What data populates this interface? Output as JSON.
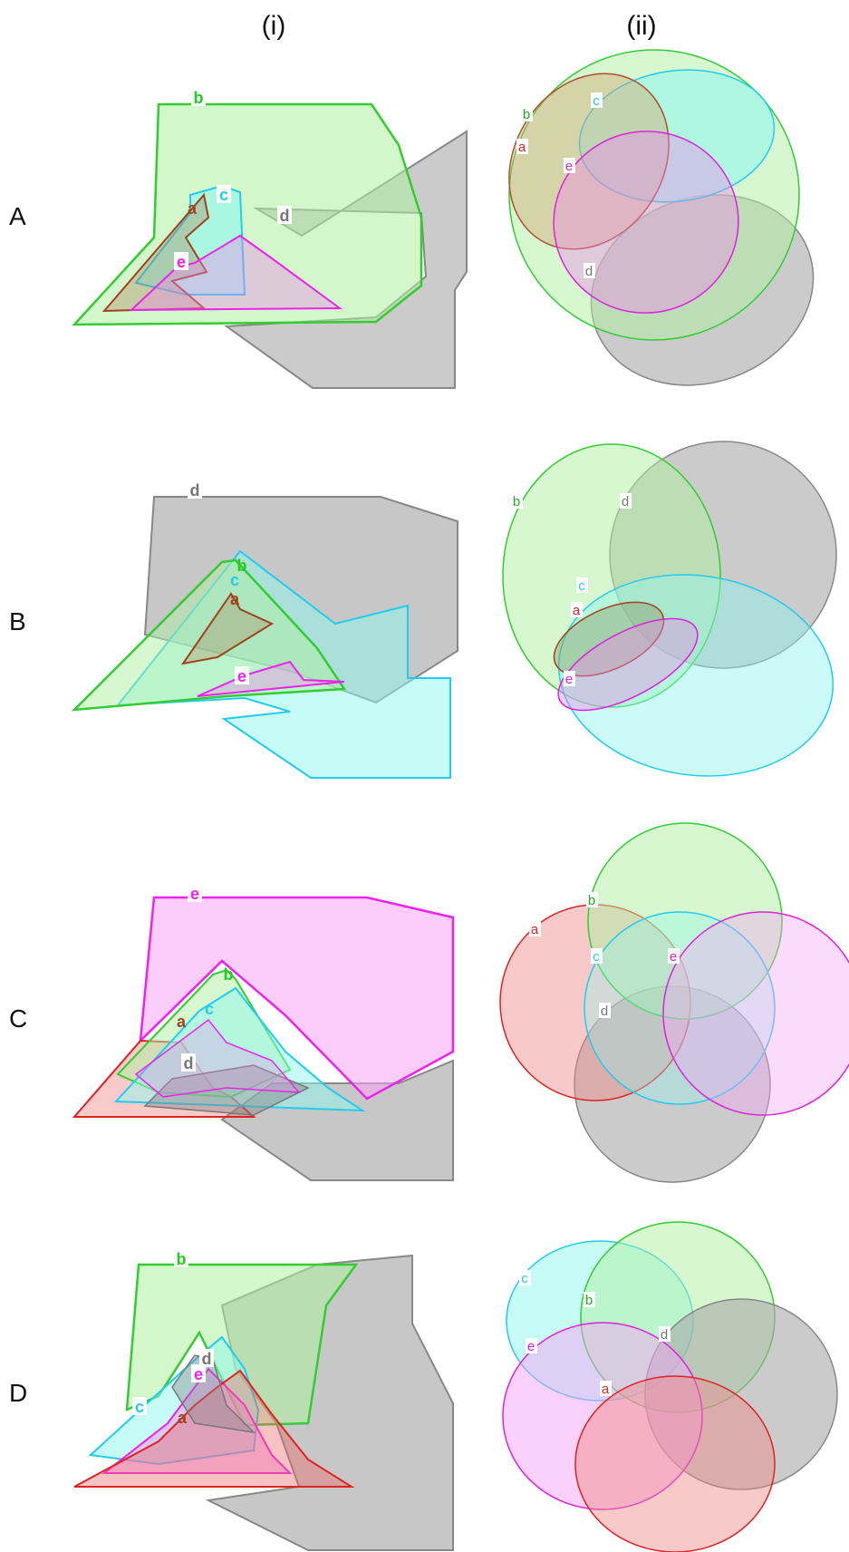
{
  "columns": [
    "(i)",
    "(ii)"
  ],
  "rows": [
    {
      "label": "A",
      "polygon_tags": [
        {
          "text": "b",
          "color": "#22cc22"
        },
        {
          "text": "c",
          "color": "#22ccee"
        },
        {
          "text": "a",
          "color": "#a0421e"
        },
        {
          "text": "d",
          "color": "#777777"
        },
        {
          "text": "e",
          "color": "#ee22ee"
        }
      ],
      "ellipse_tags": [
        {
          "text": "b",
          "color": "#22aa22"
        },
        {
          "text": "c",
          "color": "#22ccee"
        },
        {
          "text": "a",
          "color": "#dd2222"
        },
        {
          "text": "e",
          "color": "#dd22dd"
        },
        {
          "text": "d",
          "color": "#777777"
        }
      ]
    },
    {
      "label": "B",
      "polygon_tags": [
        {
          "text": "d",
          "color": "#777777"
        },
        {
          "text": "b",
          "color": "#22cc22"
        },
        {
          "text": "c",
          "color": "#22ccee"
        },
        {
          "text": "a",
          "color": "#a0421e"
        },
        {
          "text": "e",
          "color": "#ee22ee"
        }
      ],
      "ellipse_tags": [
        {
          "text": "b",
          "color": "#22aa22"
        },
        {
          "text": "d",
          "color": "#777777"
        },
        {
          "text": "c",
          "color": "#22ccee"
        },
        {
          "text": "a",
          "color": "#dd2222"
        },
        {
          "text": "e",
          "color": "#dd22dd"
        }
      ]
    },
    {
      "label": "C",
      "polygon_tags": [
        {
          "text": "e",
          "color": "#ee22ee"
        },
        {
          "text": "b",
          "color": "#22cc22"
        },
        {
          "text": "c",
          "color": "#22ccee"
        },
        {
          "text": "a",
          "color": "#a0421e"
        },
        {
          "text": "d",
          "color": "#777777"
        }
      ],
      "ellipse_tags": [
        {
          "text": "b",
          "color": "#22aa22"
        },
        {
          "text": "a",
          "color": "#dd2222"
        },
        {
          "text": "c",
          "color": "#22ccee"
        },
        {
          "text": "e",
          "color": "#dd22dd"
        },
        {
          "text": "d",
          "color": "#777777"
        }
      ]
    },
    {
      "label": "D",
      "polygon_tags": [
        {
          "text": "b",
          "color": "#22cc22"
        },
        {
          "text": "d",
          "color": "#777777"
        },
        {
          "text": "e",
          "color": "#ee22ee"
        },
        {
          "text": "c",
          "color": "#22ccee"
        },
        {
          "text": "a",
          "color": "#a0421e"
        }
      ],
      "ellipse_tags": [
        {
          "text": "c",
          "color": "#22ccee"
        },
        {
          "text": "b",
          "color": "#22aa22"
        },
        {
          "text": "d",
          "color": "#777777"
        },
        {
          "text": "e",
          "color": "#dd22dd"
        },
        {
          "text": "a",
          "color": "#dd2222"
        }
      ]
    }
  ]
}
